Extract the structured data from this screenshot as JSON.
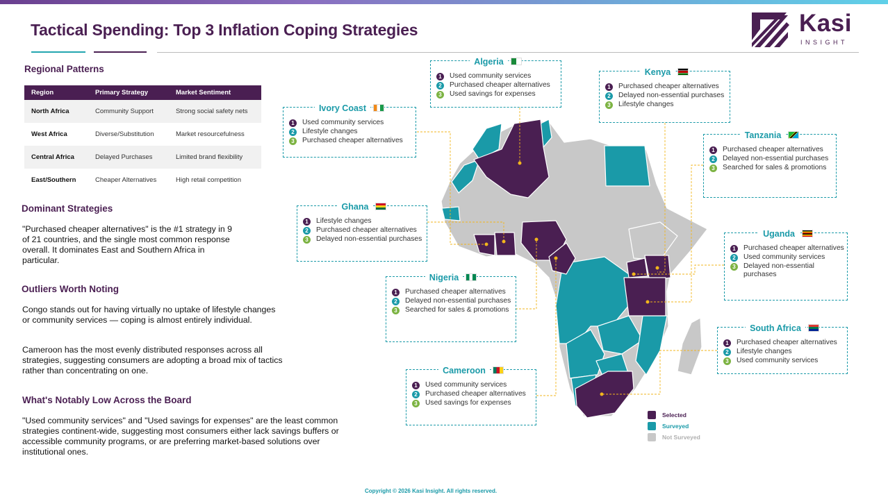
{
  "header": {
    "title": "Tactical Spending: Top 3 Inflation Coping Strategies"
  },
  "logo": {
    "name": "Kasi",
    "tagline": "INSIGHT"
  },
  "regional": {
    "heading": "Regional Patterns",
    "columns": [
      "Region",
      "Primary Strategy",
      "Market Sentiment"
    ],
    "rows": [
      [
        "North Africa",
        "Community Support",
        "Strong social safety nets"
      ],
      [
        "West Africa",
        "Diverse/Substitution",
        "Market resourcefulness"
      ],
      [
        "Central Africa",
        "Delayed Purchases",
        "Limited brand flexibility"
      ],
      [
        "East/Southern",
        "Cheaper Alternatives",
        "High retail competition"
      ]
    ]
  },
  "dominant": {
    "heading": "Dominant Strategies",
    "text": "\"Purchased cheaper alternatives\" is the #1 strategy in 9 of 21 countries, and the single most common response overall. It dominates East and Southern Africa in particular."
  },
  "outliers": {
    "heading": "Outliers Worth Noting",
    "text1": "Congo stands out for having virtually no uptake of lifestyle changes or community services — coping is almost entirely individual.",
    "text2": "Cameroon has the most evenly distributed responses across all strategies, suggesting consumers are adopting a broad mix of tactics rather than concentrating on one."
  },
  "low": {
    "heading": "What's Notably Low Across the Board",
    "text": "\"Used community services\" and \"Used savings for expenses\" are the least common strategies continent-wide, suggesting most consumers either lack savings buffers or accessible community programs, or are preferring market-based solutions over institutional ones."
  },
  "countries": {
    "algeria": {
      "name": "Algeria",
      "items": [
        "Used community services",
        "Purchased cheaper alternatives",
        "Used savings for expenses"
      ]
    },
    "kenya": {
      "name": "Kenya",
      "items": [
        "Purchased cheaper alternatives",
        "Delayed non-essential purchases",
        "Lifestyle changes"
      ]
    },
    "ivory_coast": {
      "name": "Ivory Coast",
      "items": [
        "Used community services",
        "Lifestyle changes",
        "Purchased cheaper alternatives"
      ]
    },
    "tanzania": {
      "name": "Tanzania",
      "items": [
        "Purchased cheaper alternatives",
        "Delayed non-essential purchases",
        "Searched for sales & promotions"
      ]
    },
    "ghana": {
      "name": "Ghana",
      "items": [
        "Lifestyle changes",
        "Purchased cheaper alternatives",
        "Delayed non-essential purchases"
      ]
    },
    "uganda": {
      "name": "Uganda",
      "items": [
        "Purchased cheaper alternatives",
        "Used community services",
        "Delayed non-essential purchases"
      ]
    },
    "nigeria": {
      "name": "Nigeria",
      "items": [
        "Purchased cheaper alternatives",
        "Delayed non-essential purchases",
        "Searched for sales & promotions"
      ]
    },
    "south_africa": {
      "name": "South Africa",
      "items": [
        "Purchased cheaper alternatives",
        "Lifestyle changes",
        "Used community services"
      ]
    },
    "cameroon": {
      "name": "Cameroon",
      "items": [
        "Used community services",
        "Purchased cheaper alternatives",
        "Used savings for expenses"
      ]
    }
  },
  "legend": {
    "selected": "Selected",
    "surveyed": "Surveyed",
    "not_surveyed": "Not Surveyed"
  },
  "colors": {
    "selected": "#4a1f52",
    "surveyed": "#1a9aa8",
    "not_surveyed": "#c8c8c8",
    "accent": "#7cb342",
    "connector": "#f2b51c"
  },
  "footer": {
    "copyright": "Copyright © 2026 Kasi Insight. All rights reserved."
  }
}
